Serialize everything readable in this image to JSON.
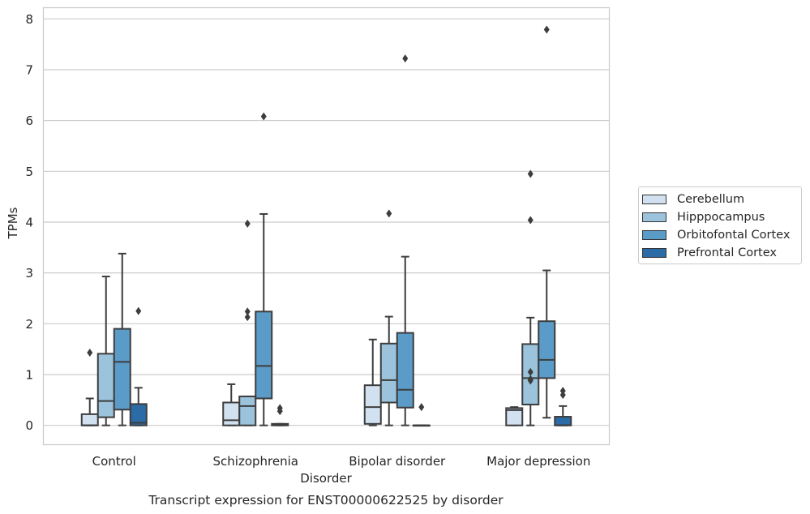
{
  "chart_data": {
    "type": "box",
    "title": "Transcript expression for ENST00000622525 by disorder",
    "xlabel": "Disorder",
    "ylabel": "TPMs",
    "ylim": [
      -0.38,
      8.22
    ],
    "yticks": [
      0,
      1,
      2,
      3,
      4,
      5,
      6,
      7,
      8
    ],
    "grid": true,
    "legend_position": "right",
    "categories": [
      "Control",
      "Schizophrenia",
      "Bipolar disorder",
      "Major depression"
    ],
    "series": [
      {
        "name": "Cerebellum",
        "color": "#d1e1f0",
        "boxes": [
          {
            "min": 0.0,
            "q1": 0.0,
            "median": 0.0,
            "q3": 0.22,
            "max": 0.53,
            "outliers": [
              1.43
            ]
          },
          {
            "min": 0.0,
            "q1": 0.0,
            "median": 0.1,
            "q3": 0.45,
            "max": 0.81,
            "outliers": []
          },
          {
            "min": 0.0,
            "q1": 0.03,
            "median": 0.36,
            "q3": 0.79,
            "max": 1.69,
            "outliers": []
          },
          {
            "min": 0.0,
            "q1": 0.0,
            "median": 0.3,
            "q3": 0.34,
            "max": 0.36,
            "outliers": []
          }
        ]
      },
      {
        "name": "Hipppocampus",
        "color": "#9cc3dc",
        "boxes": [
          {
            "min": 0.0,
            "q1": 0.16,
            "median": 0.48,
            "q3": 1.41,
            "max": 2.93,
            "outliers": []
          },
          {
            "min": 0.0,
            "q1": 0.0,
            "median": 0.38,
            "q3": 0.57,
            "max": 0.57,
            "outliers": [
              3.97,
              2.24,
              2.13
            ]
          },
          {
            "min": 0.0,
            "q1": 0.45,
            "median": 0.89,
            "q3": 1.61,
            "max": 2.14,
            "outliers": [
              4.17
            ]
          },
          {
            "min": 0.0,
            "q1": 0.41,
            "median": 0.93,
            "q3": 1.6,
            "max": 2.12,
            "outliers": [
              1.05,
              0.91,
              0.88,
              4.95,
              4.04
            ]
          }
        ]
      },
      {
        "name": "Orbitofontal Cortex",
        "color": "#5b9bc8",
        "boxes": [
          {
            "min": 0.0,
            "q1": 0.31,
            "median": 1.25,
            "q3": 1.9,
            "max": 3.38,
            "outliers": []
          },
          {
            "min": 0.0,
            "q1": 0.53,
            "median": 1.17,
            "q3": 2.24,
            "max": 4.16,
            "outliers": [
              6.08
            ]
          },
          {
            "min": 0.0,
            "q1": 0.35,
            "median": 0.7,
            "q3": 1.82,
            "max": 3.32,
            "outliers": [
              7.22
            ]
          },
          {
            "min": 0.15,
            "q1": 0.93,
            "median": 1.29,
            "q3": 2.05,
            "max": 3.05,
            "outliers": [
              7.79
            ]
          }
        ]
      },
      {
        "name": "Prefrontal Cortex",
        "color": "#2c6ca6",
        "boxes": [
          {
            "min": 0.0,
            "q1": 0.0,
            "median": 0.05,
            "q3": 0.42,
            "max": 0.74,
            "outliers": [
              2.25
            ]
          },
          {
            "min": 0.0,
            "q1": 0.0,
            "median": 0.01,
            "q3": 0.03,
            "max": 0.03,
            "outliers": [
              0.34,
              0.28
            ]
          },
          {
            "min": 0.0,
            "q1": 0.0,
            "median": 0.0,
            "q3": 0.0,
            "max": 0.0,
            "outliers": [
              0.36
            ]
          },
          {
            "min": 0.0,
            "q1": 0.0,
            "median": 0.0,
            "q3": 0.17,
            "max": 0.38,
            "outliers": [
              0.68,
              0.6
            ]
          }
        ]
      }
    ]
  }
}
